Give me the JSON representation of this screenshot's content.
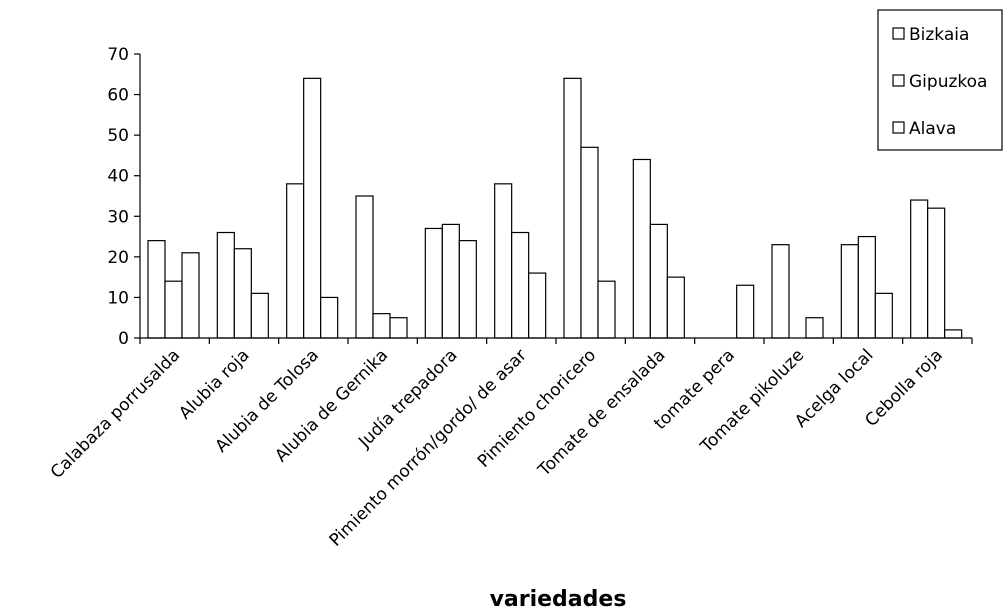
{
  "chart_data": {
    "type": "bar",
    "title": "",
    "xlabel": "variedades",
    "ylabel": "",
    "ylim": [
      0,
      70
    ],
    "yticks": [
      0,
      10,
      20,
      30,
      40,
      50,
      60,
      70
    ],
    "grid": false,
    "legend": "top-right",
    "categories": [
      "Calabaza porrusalda",
      "Alubia roja",
      "Alubia de Tolosa",
      "Alubia de Gernika",
      "Judía trepadora",
      "Pimiento morrón/gordo/ de asar",
      "Pimiento choricero",
      "Tomate de ensalada",
      "tomate pera",
      "Tomate pikoluze",
      "Acelga local",
      "Cebolla roja"
    ],
    "series": [
      {
        "name": "Bizkaia",
        "values": [
          24,
          26,
          38,
          35,
          27,
          38,
          64,
          44,
          0,
          23,
          23,
          34
        ]
      },
      {
        "name": "Gipuzkoa",
        "values": [
          14,
          22,
          64,
          6,
          28,
          26,
          47,
          28,
          0,
          0,
          25,
          32
        ]
      },
      {
        "name": "Alava",
        "values": [
          21,
          11,
          10,
          5,
          24,
          16,
          14,
          15,
          13,
          5,
          11,
          2
        ]
      }
    ]
  }
}
